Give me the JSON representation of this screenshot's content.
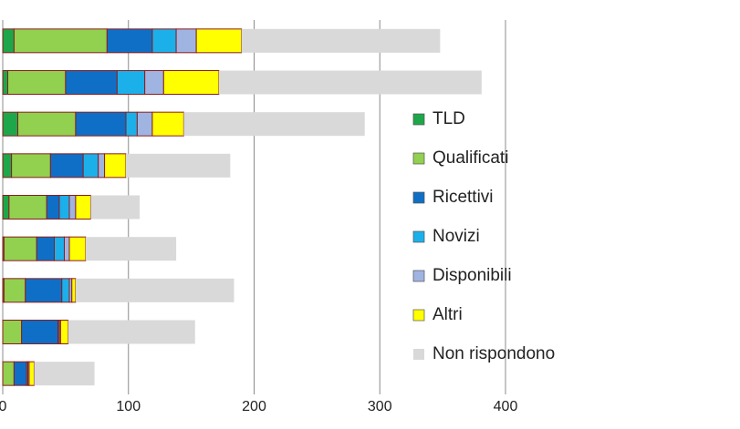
{
  "chart_data": {
    "type": "stacked-bar-horizontal",
    "categories": [
      null,
      null,
      null,
      null,
      null,
      null,
      null,
      null,
      null
    ],
    "series": [
      {
        "name": "TLD",
        "color": "#1ea64b",
        "values": [
          9,
          4,
          12,
          7,
          5,
          1,
          1,
          0,
          0
        ]
      },
      {
        "name": "Qualificati",
        "color": "#92d050",
        "values": [
          74,
          46,
          46,
          31,
          30,
          26,
          17,
          15,
          9
        ]
      },
      {
        "name": "Ricettivi",
        "color": "#0f6fc6",
        "values": [
          36,
          41,
          40,
          26,
          10,
          14,
          29,
          29,
          10
        ]
      },
      {
        "name": "Novizi",
        "color": "#1cb0ea",
        "values": [
          19,
          22,
          9,
          12,
          8,
          8,
          6,
          1,
          1
        ]
      },
      {
        "name": "Disponibili",
        "color": "#a0b4e2",
        "values": [
          16,
          15,
          12,
          5,
          5,
          4,
          2,
          1,
          1
        ]
      },
      {
        "name": "Altri",
        "color": "#ffff00",
        "values": [
          36,
          44,
          25,
          17,
          12,
          13,
          3,
          6,
          4
        ]
      },
      {
        "name": "Non rispondono",
        "color": "#d9d9d9",
        "values": [
          158,
          209,
          144,
          83,
          39,
          72,
          126,
          101,
          48
        ]
      }
    ],
    "xlim": [
      0,
      400
    ],
    "xticks": [
      0,
      100,
      200,
      300,
      400
    ],
    "grid": true,
    "legend": "right"
  }
}
